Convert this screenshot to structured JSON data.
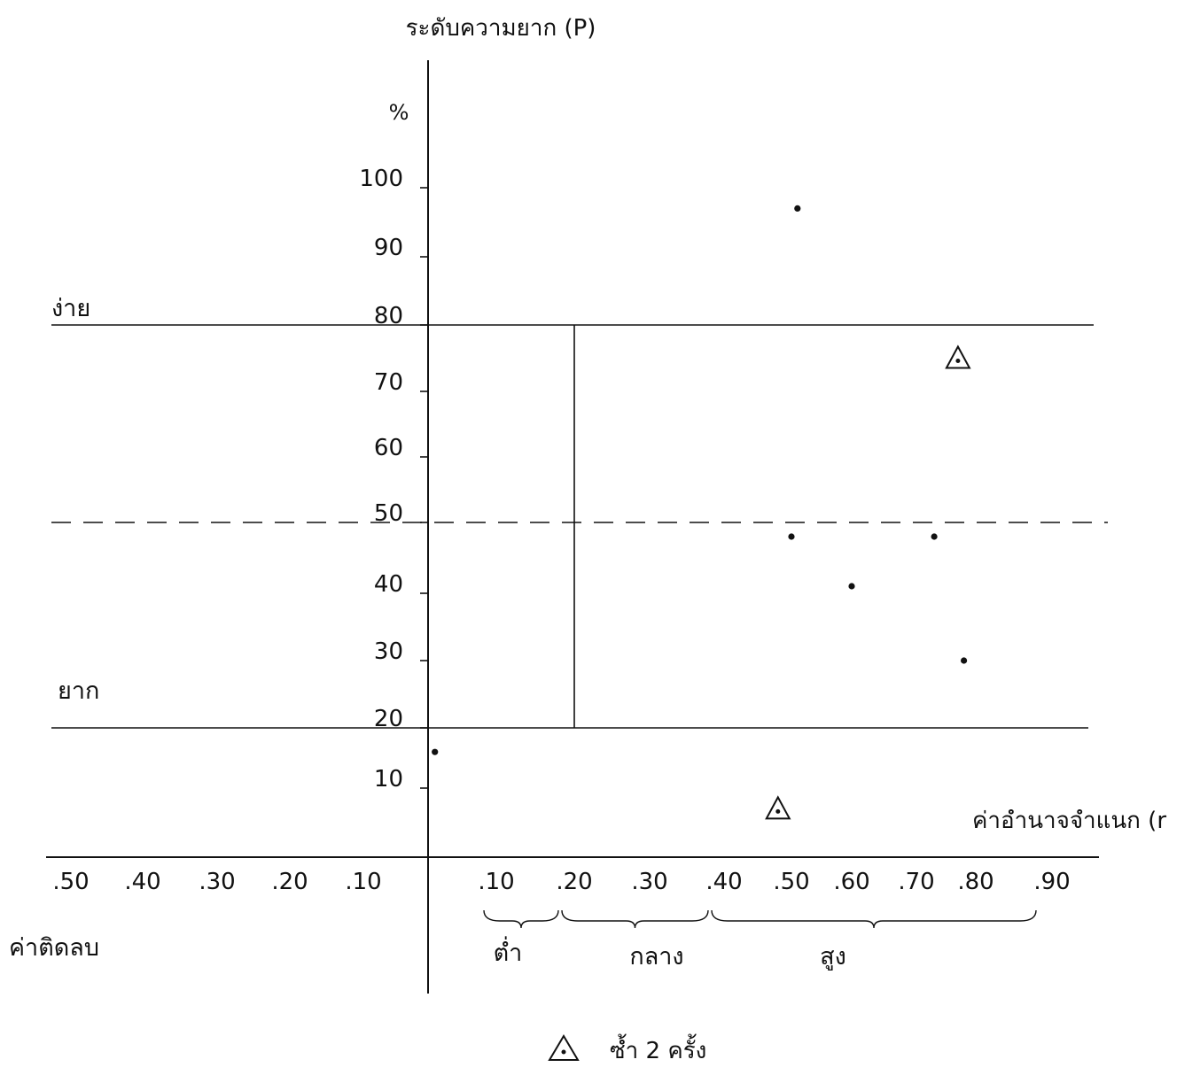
{
  "chart_data": {
    "type": "scatter",
    "title": "",
    "ylabel": "ระดับความยาก (P)",
    "ylabel_unit": "%",
    "xlabel": "ค่าอำนาจจำแนก (r",
    "negative_label": "ค่าติดลบ",
    "y_ticks": [
      "100",
      "90",
      "80",
      "70",
      "60",
      "50",
      "40",
      "30",
      "20",
      "10"
    ],
    "x_ticks_negative": [
      ".50",
      ".40",
      ".30",
      ".20",
      ".10"
    ],
    "x_ticks_positive": [
      ".10",
      ".20",
      ".30",
      ".40",
      ".50",
      ".60",
      ".70",
      ".80",
      ".90"
    ],
    "xlim": [
      -0.5,
      0.9
    ],
    "ylim": [
      0,
      100
    ],
    "grid": false,
    "reference_lines": {
      "easy": {
        "label": "ง่าย",
        "y": 80
      },
      "middle": {
        "label": "",
        "y": 50,
        "style": "dashed"
      },
      "hard": {
        "label": "ยาก",
        "y": 20
      },
      "r_cut": {
        "label": "",
        "x": 0.2
      }
    },
    "ranges": [
      {
        "label": "ต่ำ",
        "from": 0.1,
        "to": 0.2
      },
      {
        "label": "กลาง",
        "from": 0.2,
        "to": 0.4
      },
      {
        "label": "สูง",
        "from": 0.4,
        "to": 0.9
      }
    ],
    "series": [
      {
        "name": "",
        "marker": "dot",
        "points": [
          {
            "x": 0.51,
            "y": 97
          },
          {
            "x": 0.5,
            "y": 48
          },
          {
            "x": 0.6,
            "y": 41
          },
          {
            "x": 0.73,
            "y": 48
          },
          {
            "x": 0.78,
            "y": 30
          },
          {
            "x": 0.01,
            "y": 16
          }
        ]
      },
      {
        "name": "ซ้ำ 2 ครั้ง",
        "marker": "triangle",
        "points": [
          {
            "x": 0.77,
            "y": 75
          },
          {
            "x": 0.48,
            "y": 7
          }
        ]
      }
    ],
    "legend": {
      "label": "ซ้ำ 2 ครั้ง",
      "placement": "bottom-center"
    }
  }
}
